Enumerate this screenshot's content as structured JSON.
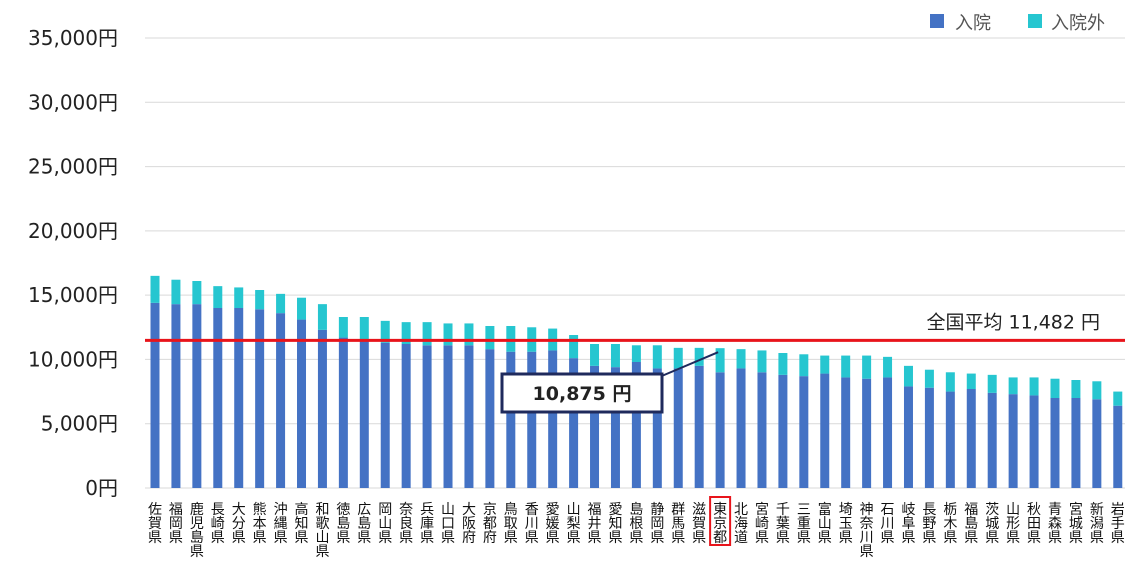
{
  "chart_data": {
    "type": "bar",
    "stacked": true,
    "categories": [
      "佐賀県",
      "福岡県",
      "鹿児島県",
      "長崎県",
      "大分県",
      "熊本県",
      "沖縄県",
      "高知県",
      "和歌山県",
      "徳島県",
      "広島県",
      "岡山県",
      "奈良県",
      "兵庫県",
      "山口県",
      "大阪府",
      "京都府",
      "鳥取県",
      "香川県",
      "愛媛県",
      "山梨県",
      "福井県",
      "愛知県",
      "島根県",
      "静岡県",
      "群馬県",
      "滋賀県",
      "東京都",
      "北海道",
      "宮崎県",
      "千葉県",
      "三重県",
      "富山県",
      "埼玉県",
      "神奈川県",
      "石川県",
      "岐阜県",
      "長野県",
      "栃木県",
      "福島県",
      "茨城県",
      "山形県",
      "秋田県",
      "青森県",
      "宮城県",
      "新潟県",
      "岩手県"
    ],
    "series": [
      {
        "name": "入院",
        "color": "#4472C4",
        "values": [
          14400,
          14300,
          14300,
          14000,
          14000,
          13900,
          13600,
          13100,
          12300,
          11700,
          11500,
          11300,
          11200,
          11100,
          11100,
          11100,
          10800,
          10600,
          10600,
          10700,
          10100,
          9500,
          9400,
          9800,
          9300,
          9300,
          9500,
          9000,
          9300,
          9000,
          8800,
          8700,
          8900,
          8600,
          8500,
          8600,
          7900,
          7800,
          7500,
          7700,
          7400,
          7300,
          7200,
          7000,
          7000,
          6900,
          6400
        ]
      },
      {
        "name": "入院外",
        "color": "#26C6D0",
        "values": [
          2100,
          1900,
          1800,
          1700,
          1600,
          1500,
          1500,
          1700,
          2000,
          1600,
          1800,
          1700,
          1700,
          1800,
          1700,
          1700,
          1800,
          2000,
          1900,
          1700,
          1800,
          1700,
          1800,
          1300,
          1800,
          1600,
          1400,
          1875,
          1500,
          1700,
          1700,
          1700,
          1400,
          1700,
          1800,
          1600,
          1600,
          1400,
          1500,
          1200,
          1400,
          1300,
          1400,
          1500,
          1400,
          1400,
          1100
        ]
      }
    ],
    "yticks": [
      "0円",
      "5,000円",
      "10,000円",
      "15,000円",
      "20,000円",
      "25,000円",
      "30,000円",
      "35,000円"
    ],
    "ylim": [
      0,
      35000
    ],
    "grid": true,
    "legend_position": "top-right",
    "average_line": {
      "value": 11482,
      "label": "全国平均 11,482 円",
      "color": "#E8141B"
    },
    "callout": {
      "category": "東京都",
      "text": "10,875 円",
      "color": "#1F2A5C"
    },
    "highlight_category": "東京都",
    "highlight_color": "#E8141B"
  }
}
